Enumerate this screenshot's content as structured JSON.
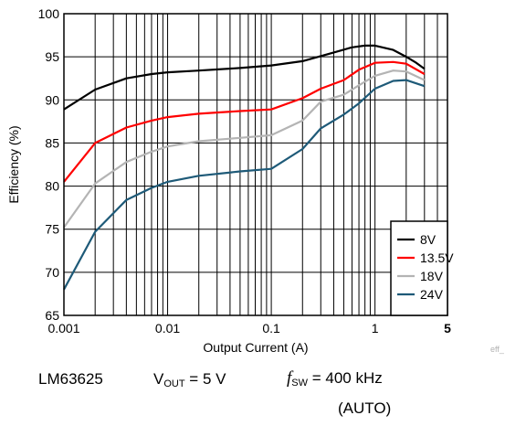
{
  "chart_data": {
    "type": "line",
    "xlabel": "Output Current (A)",
    "ylabel": "Efficiency (%)",
    "x_scale": "log",
    "xlim": [
      0.001,
      5
    ],
    "ylim": [
      65,
      100
    ],
    "x_ticks": [
      {
        "value": 0.001,
        "label": "0.001",
        "bold": false
      },
      {
        "value": 0.01,
        "label": "0.01",
        "bold": false
      },
      {
        "value": 0.1,
        "label": "0.1",
        "bold": false
      },
      {
        "value": 1,
        "label": "1",
        "bold": false
      },
      {
        "value": 5,
        "label": "5",
        "bold": true
      }
    ],
    "y_ticks": [
      65,
      70,
      75,
      80,
      85,
      90,
      95,
      100
    ],
    "grid": true,
    "legend_position": "bottom-right",
    "series": [
      {
        "name": "8V",
        "color": "#000000",
        "points": [
          [
            0.001,
            88.9
          ],
          [
            0.002,
            91.2
          ],
          [
            0.004,
            92.5
          ],
          [
            0.007,
            93.0
          ],
          [
            0.01,
            93.2
          ],
          [
            0.02,
            93.4
          ],
          [
            0.05,
            93.7
          ],
          [
            0.1,
            94.0
          ],
          [
            0.2,
            94.5
          ],
          [
            0.4,
            95.5
          ],
          [
            0.6,
            96.1
          ],
          [
            0.8,
            96.3
          ],
          [
            1.0,
            96.3
          ],
          [
            1.5,
            95.8
          ],
          [
            2.0,
            95.0
          ],
          [
            2.5,
            94.3
          ],
          [
            3.0,
            93.6
          ]
        ]
      },
      {
        "name": "13.5V",
        "color": "#ff0000",
        "points": [
          [
            0.001,
            80.5
          ],
          [
            0.002,
            85.0
          ],
          [
            0.004,
            86.8
          ],
          [
            0.007,
            87.6
          ],
          [
            0.01,
            88.0
          ],
          [
            0.02,
            88.4
          ],
          [
            0.05,
            88.7
          ],
          [
            0.1,
            88.9
          ],
          [
            0.2,
            90.2
          ],
          [
            0.3,
            91.3
          ],
          [
            0.5,
            92.3
          ],
          [
            0.7,
            93.5
          ],
          [
            1.0,
            94.3
          ],
          [
            1.5,
            94.4
          ],
          [
            2.0,
            94.2
          ],
          [
            3.0,
            93.0
          ]
        ]
      },
      {
        "name": "18V",
        "color": "#b4b4b4",
        "points": [
          [
            0.001,
            75.2
          ],
          [
            0.002,
            80.3
          ],
          [
            0.004,
            82.8
          ],
          [
            0.007,
            84.0
          ],
          [
            0.01,
            84.6
          ],
          [
            0.02,
            85.2
          ],
          [
            0.05,
            85.6
          ],
          [
            0.1,
            85.9
          ],
          [
            0.2,
            87.6
          ],
          [
            0.3,
            89.8
          ],
          [
            0.5,
            90.6
          ],
          [
            0.7,
            91.7
          ],
          [
            1.0,
            92.8
          ],
          [
            1.5,
            93.4
          ],
          [
            2.0,
            93.3
          ],
          [
            3.0,
            92.3
          ]
        ]
      },
      {
        "name": "24V",
        "color": "#1e5a78",
        "points": [
          [
            0.001,
            68.0
          ],
          [
            0.002,
            74.7
          ],
          [
            0.004,
            78.4
          ],
          [
            0.007,
            79.8
          ],
          [
            0.01,
            80.5
          ],
          [
            0.02,
            81.2
          ],
          [
            0.05,
            81.7
          ],
          [
            0.1,
            82.0
          ],
          [
            0.2,
            84.3
          ],
          [
            0.3,
            86.7
          ],
          [
            0.5,
            88.3
          ],
          [
            0.7,
            89.6
          ],
          [
            1.0,
            91.3
          ],
          [
            1.5,
            92.2
          ],
          [
            2.0,
            92.3
          ],
          [
            3.0,
            91.6
          ]
        ]
      }
    ]
  },
  "figure_tag": "eff_",
  "caption": {
    "device": "LM63625",
    "vout_symbol": "V",
    "vout_subscript": "OUT",
    "vout_value": " = 5 V",
    "fsw_symbol": "f",
    "fsw_subscript": "SW",
    "fsw_value": " = 400 kHz",
    "mode": "(AUTO)"
  }
}
